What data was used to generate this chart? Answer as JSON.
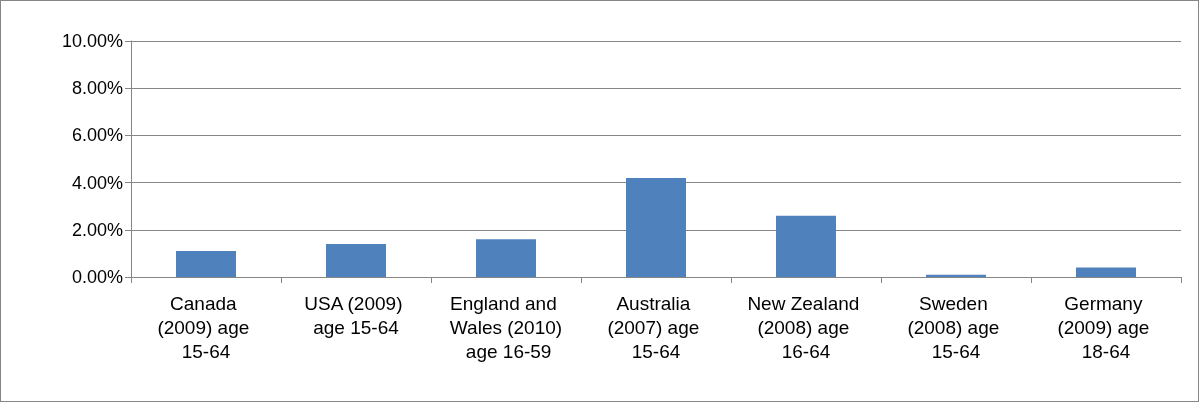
{
  "chart_data": {
    "type": "bar",
    "categories": [
      "Canada (2009) age 15-64",
      "USA (2009) age 15-64",
      "England and Wales (2010) age 16-59",
      "Australia (2007) age 15-64",
      "New Zealand (2008) age 16-64",
      "Sweden (2008) age 15-64",
      "Germany (2009) age 18-64"
    ],
    "values": [
      1.1,
      1.4,
      1.6,
      4.2,
      2.6,
      0.1,
      0.4
    ],
    "color": "#4f81bd",
    "ylim": [
      0,
      10
    ],
    "yticks": [
      {
        "value": 0,
        "label": "0.00%"
      },
      {
        "value": 2,
        "label": "2.00%"
      },
      {
        "value": 4,
        "label": "4.00%"
      },
      {
        "value": 6,
        "label": "6.00%"
      },
      {
        "value": 8,
        "label": "8.00%"
      },
      {
        "value": 10,
        "label": "10.00%"
      }
    ],
    "grid": "y"
  }
}
